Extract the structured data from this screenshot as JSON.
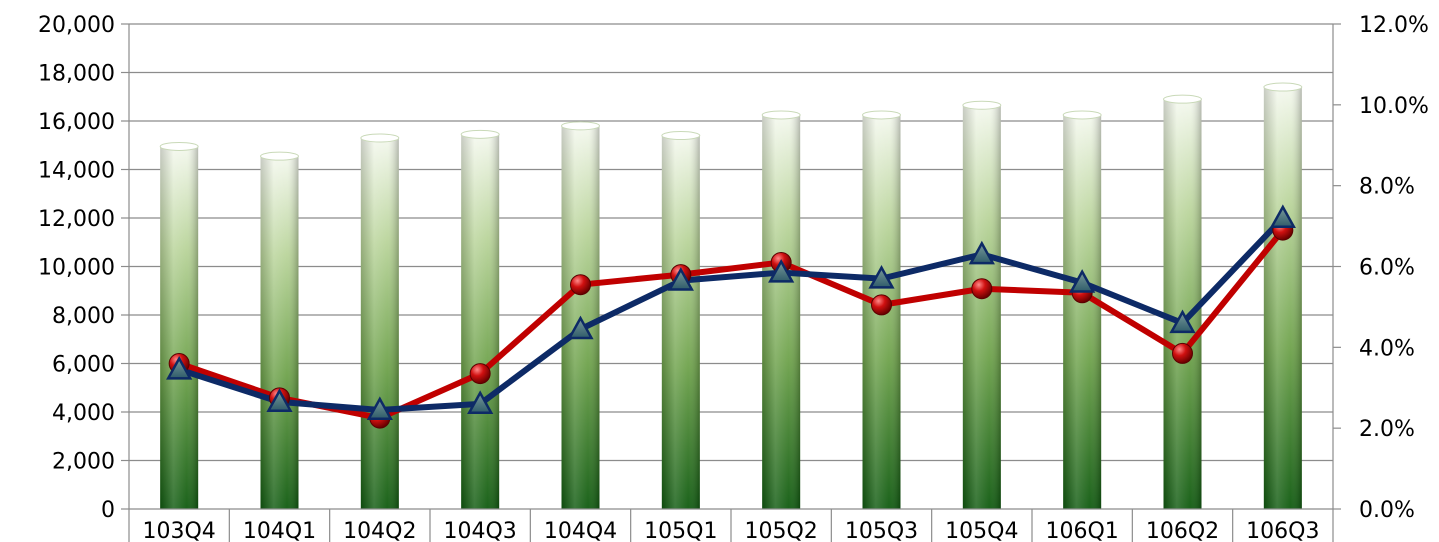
{
  "chart_data": {
    "type": "bar",
    "categories": [
      "103Q4",
      "104Q1",
      "104Q2",
      "104Q3",
      "104Q4",
      "105Q1",
      "105Q2",
      "105Q3",
      "105Q4",
      "106Q1",
      "106Q2",
      "106Q3"
    ],
    "series": [
      {
        "kind": "bar",
        "axis": "left",
        "values": [
          14950,
          14550,
          15300,
          15450,
          15800,
          15400,
          16250,
          16250,
          16650,
          16250,
          16900,
          17400
        ],
        "color_top": "#f4f8ee",
        "color_bottom": "#0f5a0f"
      },
      {
        "kind": "line",
        "axis": "right",
        "marker": "circle",
        "values": [
          3.6,
          2.75,
          2.25,
          3.35,
          5.55,
          5.8,
          6.1,
          5.05,
          5.45,
          5.35,
          3.85,
          6.9
        ],
        "color": "#c00000"
      },
      {
        "kind": "line",
        "axis": "right",
        "marker": "triangle",
        "values": [
          3.45,
          2.65,
          2.45,
          2.6,
          4.45,
          5.65,
          5.85,
          5.7,
          6.3,
          5.6,
          4.6,
          7.2
        ],
        "color": "#0d2a66"
      }
    ],
    "y_left": {
      "ylim": [
        0,
        20000
      ],
      "ticks": [
        "0",
        "2,000",
        "4,000",
        "6,000",
        "8,000",
        "10,000",
        "12,000",
        "14,000",
        "16,000",
        "18,000",
        "20,000"
      ]
    },
    "y_right": {
      "ylim": [
        0,
        12
      ],
      "ticks": [
        "0.0%",
        "2.0%",
        "4.0%",
        "6.0%",
        "8.0%",
        "10.0%",
        "12.0%"
      ]
    },
    "grid": true,
    "legend": "none"
  }
}
